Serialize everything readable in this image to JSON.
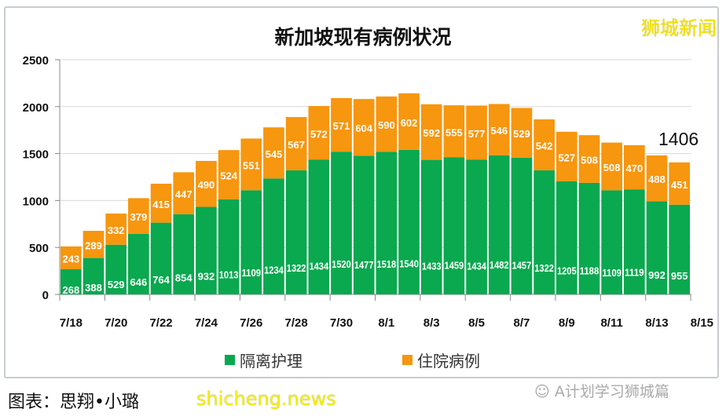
{
  "chart_data": {
    "type": "bar",
    "stacked": true,
    "title": "新加坡现有病例状况",
    "categories": [
      "7/18",
      "7/19",
      "7/20",
      "7/21",
      "7/22",
      "7/23",
      "7/24",
      "7/25",
      "7/26",
      "7/27",
      "7/28",
      "7/29",
      "7/30",
      "7/31",
      "8/1",
      "8/2",
      "8/3",
      "8/4",
      "8/5",
      "8/6",
      "8/7",
      "8/8",
      "8/9",
      "8/10",
      "8/11",
      "8/12",
      "8/13",
      "8/14"
    ],
    "x_tick_labels": [
      "7/18",
      "7/20",
      "7/22",
      "7/24",
      "7/26",
      "7/28",
      "7/30",
      "8/1",
      "8/3",
      "8/5",
      "8/7",
      "8/9",
      "8/11",
      "8/13",
      "8/15"
    ],
    "y_ticks": [
      0,
      500,
      1000,
      1500,
      2000,
      2500
    ],
    "ylim": [
      0,
      2500
    ],
    "grid": true,
    "legend": "bottom",
    "series": [
      {
        "name": "隔离护理",
        "color": "#0aa84f",
        "values": [
          268,
          388,
          529,
          646,
          764,
          854,
          932,
          1013,
          1109,
          1234,
          1322,
          1434,
          1520,
          1477,
          1518,
          1540,
          1433,
          1459,
          1434,
          1482,
          1457,
          1322,
          1205,
          1188,
          1109,
          1119,
          992,
          955
        ]
      },
      {
        "name": "住院病例",
        "color": "#f7960f",
        "values": [
          243,
          289,
          332,
          379,
          415,
          447,
          490,
          524,
          551,
          545,
          567,
          572,
          571,
          604,
          590,
          602,
          592,
          555,
          577,
          546,
          529,
          542,
          527,
          508,
          508,
          470,
          488,
          451
        ]
      }
    ],
    "annotation": "1406"
  },
  "watermark": "狮城新闻",
  "credit": "图表：思翔•小璐",
  "site": "shicheng.news",
  "account": "A计划学习狮城篇"
}
